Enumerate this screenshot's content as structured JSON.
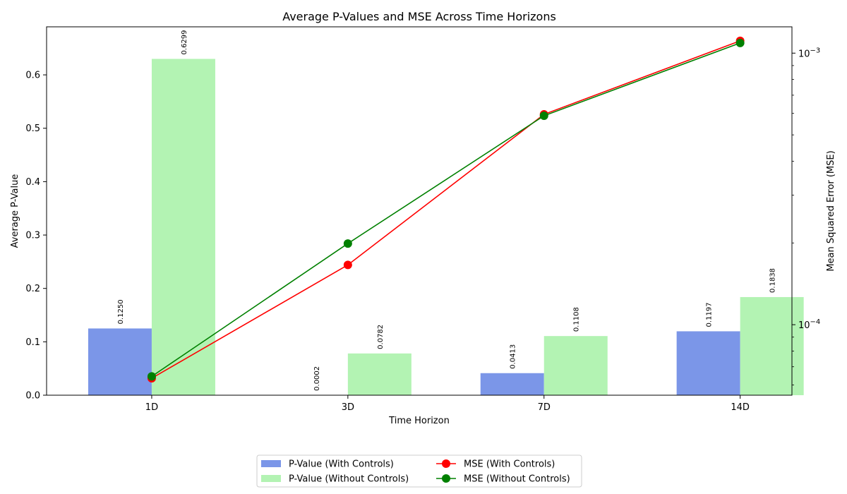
{
  "chart_data": {
    "type": "bar",
    "title": "Average P-Values and MSE Across Time Horizons",
    "xlabel": "Time Horizon",
    "ylabel": "Average P-Value",
    "y2label": "Mean Squared Error (MSE)",
    "categories": [
      "1D",
      "3D",
      "7D",
      "14D"
    ],
    "ylim": [
      0,
      0.69
    ],
    "yticks": [
      0.0,
      0.1,
      0.2,
      0.3,
      0.4,
      0.5,
      0.6
    ],
    "ytick_labels": [
      "0.0",
      "0.1",
      "0.2",
      "0.3",
      "0.4",
      "0.5",
      "0.6"
    ],
    "y2scale": "log",
    "y2lim": [
      5.5e-05,
      0.00125
    ],
    "y2ticks": [
      0.0001,
      0.001
    ],
    "y2tick_base": "10",
    "y2tick_exponents": [
      "−4",
      "−3"
    ],
    "bar_series": [
      {
        "name": "P-Value (With Controls)",
        "values": [
          0.125,
          0.0002,
          0.0413,
          0.1197
        ],
        "labels": [
          "0.1250",
          "0.0002",
          "0.0413",
          "0.1197"
        ],
        "color": "#7b96e8"
      },
      {
        "name": "P-Value (Without Controls)",
        "values": [
          0.6299,
          0.0782,
          0.1108,
          0.1838
        ],
        "labels": [
          "0.6299",
          "0.0782",
          "0.1108",
          "0.1838"
        ],
        "color": "#b3f3b3"
      }
    ],
    "line_series": [
      {
        "name": "MSE (With Controls)",
        "values": [
          6.35e-05,
          0.000166,
          0.000595,
          0.00111
        ],
        "color": "#ff0000"
      },
      {
        "name": "MSE (Without Controls)",
        "values": [
          6.45e-05,
          0.000199,
          0.000588,
          0.00109
        ],
        "color": "#008000"
      }
    ],
    "legend": {
      "position": "bottom-center",
      "columns": 2,
      "items": [
        {
          "name": "P-Value (With Controls)",
          "kind": "bar",
          "color": "#7b96e8"
        },
        {
          "name": "MSE (With Controls)",
          "kind": "line",
          "color": "#ff0000"
        },
        {
          "name": "P-Value (Without Controls)",
          "kind": "bar",
          "color": "#b3f3b3"
        },
        {
          "name": "MSE (Without Controls)",
          "kind": "line",
          "color": "#008000"
        }
      ]
    },
    "grid": false
  }
}
